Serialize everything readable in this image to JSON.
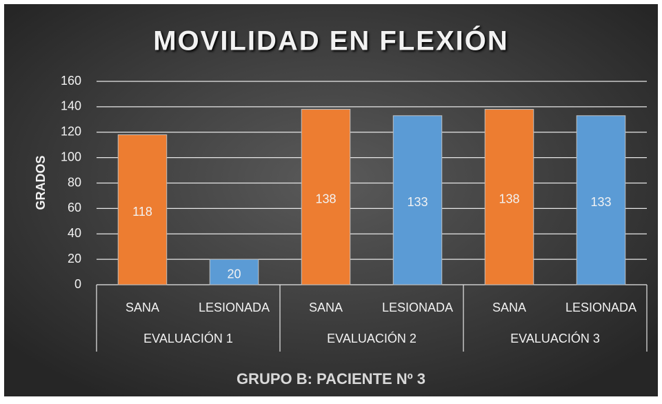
{
  "chart_data": {
    "type": "bar",
    "title": "MOVILIDAD EN FLEXIÓN",
    "x_label": "GRUPO B: PACIENTE Nº 3",
    "y_label": "GRADOS",
    "categories": [
      "SANA",
      "LESIONADA",
      "SANA",
      "LESIONADA",
      "SANA",
      "LESIONADA"
    ],
    "groups": [
      "EVALUACIÓN 1",
      "EVALUACIÓN 2",
      "EVALUACIÓN 3"
    ],
    "values": [
      118,
      20,
      138,
      133,
      138,
      133
    ],
    "colors": [
      "#ed7d31",
      "#5b9bd5",
      "#ed7d31",
      "#5b9bd5",
      "#ed7d31",
      "#5b9bd5"
    ],
    "ylim": [
      0,
      160
    ],
    "yticks": [
      0,
      20,
      40,
      60,
      80,
      100,
      120,
      140,
      160
    ],
    "grid": true
  }
}
